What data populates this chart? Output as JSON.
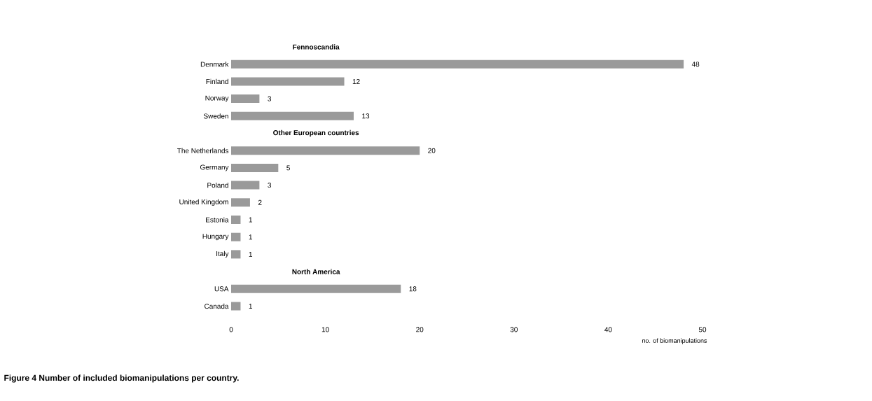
{
  "chart_data": {
    "type": "bar",
    "orientation": "horizontal",
    "categories": [
      "Fennoscandia",
      "Denmark",
      "Finland",
      "Norway",
      "Sweden",
      "Other European countries",
      "The Netherlands",
      "Germany",
      "Poland",
      "United Kingdom",
      "Estonia",
      "Hungary",
      "Italy",
      "North America",
      "USA",
      "Canada"
    ],
    "values": [
      null,
      48,
      12,
      3,
      13,
      null,
      20,
      5,
      3,
      2,
      1,
      1,
      1,
      null,
      18,
      1
    ],
    "color": "#9a9a9a",
    "xlim": [
      0,
      50
    ],
    "xticks": [
      0,
      10,
      20,
      30,
      40,
      50
    ],
    "xlabel": "no. of biomanipulations",
    "data_labels": true,
    "grid": false,
    "annotations": [
      "Figure 4 Number of included biomanipulations per country."
    ]
  }
}
